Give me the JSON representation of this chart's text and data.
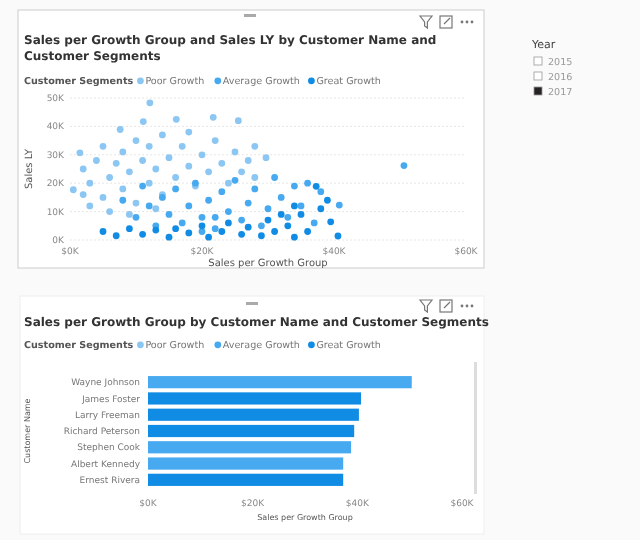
{
  "chart_data": [
    {
      "type": "scatter",
      "title": "Sales per Growth Group and Sales LY by Customer Name and Customer Segments",
      "xlabel": "Sales per Growth Group",
      "ylabel": "Sales LY",
      "legend_title": "Customer Segments",
      "legend": "top left",
      "grid": "y",
      "marker": "circle",
      "xlim": [
        0,
        60000
      ],
      "xticks": [
        {
          "value": 0,
          "label": "$0K"
        },
        {
          "value": 20000,
          "label": "$20K"
        },
        {
          "value": 40000,
          "label": "$40K"
        },
        {
          "value": 60000,
          "label": "$60K"
        }
      ],
      "ylim": [
        0,
        50000
      ],
      "yticks": [
        {
          "value": 0,
          "label": "0K"
        },
        {
          "value": 10000,
          "label": "10K"
        },
        {
          "value": 20000,
          "label": "20K"
        },
        {
          "value": 30000,
          "label": "30K"
        },
        {
          "value": 40000,
          "label": "40K"
        },
        {
          "value": 50000,
          "label": "50K"
        }
      ],
      "series": [
        {
          "name": "Poor Growth",
          "color": "#8cc6f2",
          "x": [
            500,
            1500,
            7600,
            11100,
            12100,
            16100,
            21700,
            25500,
            29700,
            2000,
            3000,
            4000,
            5000,
            5000,
            6000,
            7000,
            8000,
            8000,
            9000,
            10000,
            10000,
            11000,
            12000,
            12000,
            13000,
            14000,
            14000,
            15000,
            16000,
            17000,
            18000,
            19000,
            20000,
            21000,
            22000,
            23000,
            24000,
            25000,
            26000,
            27000,
            28000,
            3000,
            6000,
            9000,
            13000,
            2000,
            18000,
            28000
          ],
          "values": [
            17700,
            30700,
            38900,
            41700,
            48300,
            42500,
            43200,
            42000,
            29000,
            25000,
            20000,
            28000,
            15000,
            33000,
            22000,
            27000,
            18000,
            31000,
            24000,
            35000,
            13000,
            28000,
            20000,
            33000,
            25000,
            16000,
            37000,
            29000,
            22000,
            33000,
            26000,
            19000,
            30000,
            24000,
            35000,
            27000,
            20000,
            31000,
            24000,
            28000,
            22000,
            12000,
            10000,
            9000,
            11000,
            16000,
            38000,
            33000
          ]
        },
        {
          "name": "Average Growth",
          "color": "#47a9ef",
          "x": [
            50600,
            40800,
            10000,
            12000,
            13000,
            14000,
            15000,
            16000,
            17000,
            18000,
            19000,
            20000,
            21000,
            22000,
            23000,
            24000,
            25000,
            26000,
            27000,
            28000,
            29000,
            30000,
            31000,
            32000,
            33000,
            34000,
            35000,
            36000,
            38000,
            37000,
            8000,
            11000,
            20000,
            22000
          ],
          "values": [
            26200,
            12300,
            8000,
            12000,
            5000,
            15000,
            9000,
            18000,
            6000,
            12000,
            20000,
            8000,
            14000,
            4000,
            17000,
            10000,
            21000,
            7000,
            13000,
            18000,
            5000,
            11000,
            22000,
            15000,
            8000,
            19000,
            12000,
            20000,
            17000,
            6000,
            14000,
            19000,
            3000,
            8000
          ]
        },
        {
          "name": "Great Growth",
          "color": "#118ce4",
          "x": [
            40600,
            39500,
            37300,
            5000,
            7000,
            9000,
            11000,
            13000,
            15000,
            16000,
            18000,
            20000,
            21000,
            23000,
            24000,
            26000,
            27000,
            29000,
            30000,
            31000,
            33000,
            34000,
            35000,
            36000,
            38000,
            39000,
            34000,
            32000
          ],
          "values": [
            1400,
            6400,
            18900,
            3000,
            1500,
            4000,
            2000,
            3500,
            1000,
            4000,
            2500,
            5000,
            1000,
            3000,
            6000,
            2000,
            4500,
            1500,
            7000,
            3000,
            5000,
            1000,
            9000,
            3000,
            11000,
            14000,
            12000,
            9000
          ]
        }
      ]
    },
    {
      "type": "bar",
      "orientation": "horizontal",
      "stacked": true,
      "title": "Sales per Growth Group by Customer Name and Customer Segments",
      "xlabel": "Sales per Growth Group",
      "ylabel": "Customer Name",
      "legend_title": "Customer Segments",
      "legend": "top left",
      "categories": [
        "Wayne Johnson",
        "James Foster",
        "Larry Freeman",
        "Richard Peterson",
        "Stephen Cook",
        "Albert Kennedy",
        "Ernest Rivera"
      ],
      "xlim": [
        0,
        60000
      ],
      "xticks": [
        {
          "value": 0,
          "label": "$0K"
        },
        {
          "value": 20000,
          "label": "$20K"
        },
        {
          "value": 40000,
          "label": "$40K"
        },
        {
          "value": 60000,
          "label": "$60K"
        }
      ],
      "series": [
        {
          "name": "Poor Growth",
          "color": "#8cc6f2",
          "values": [
            null,
            null,
            null,
            null,
            null,
            null,
            null
          ]
        },
        {
          "name": "Average Growth",
          "color": "#47a9ef",
          "values": [
            50400,
            null,
            null,
            null,
            38800,
            37300,
            null
          ]
        },
        {
          "name": "Great Growth",
          "color": "#118ce4",
          "values": [
            null,
            40700,
            40300,
            39400,
            null,
            null,
            37300
          ]
        }
      ]
    },
    {
      "type": "other",
      "title": "Year",
      "categories": [
        "2015",
        "2016",
        "2017"
      ],
      "colors": [
        "#ffffff",
        "#ffffff",
        "#252423"
      ]
    }
  ]
}
